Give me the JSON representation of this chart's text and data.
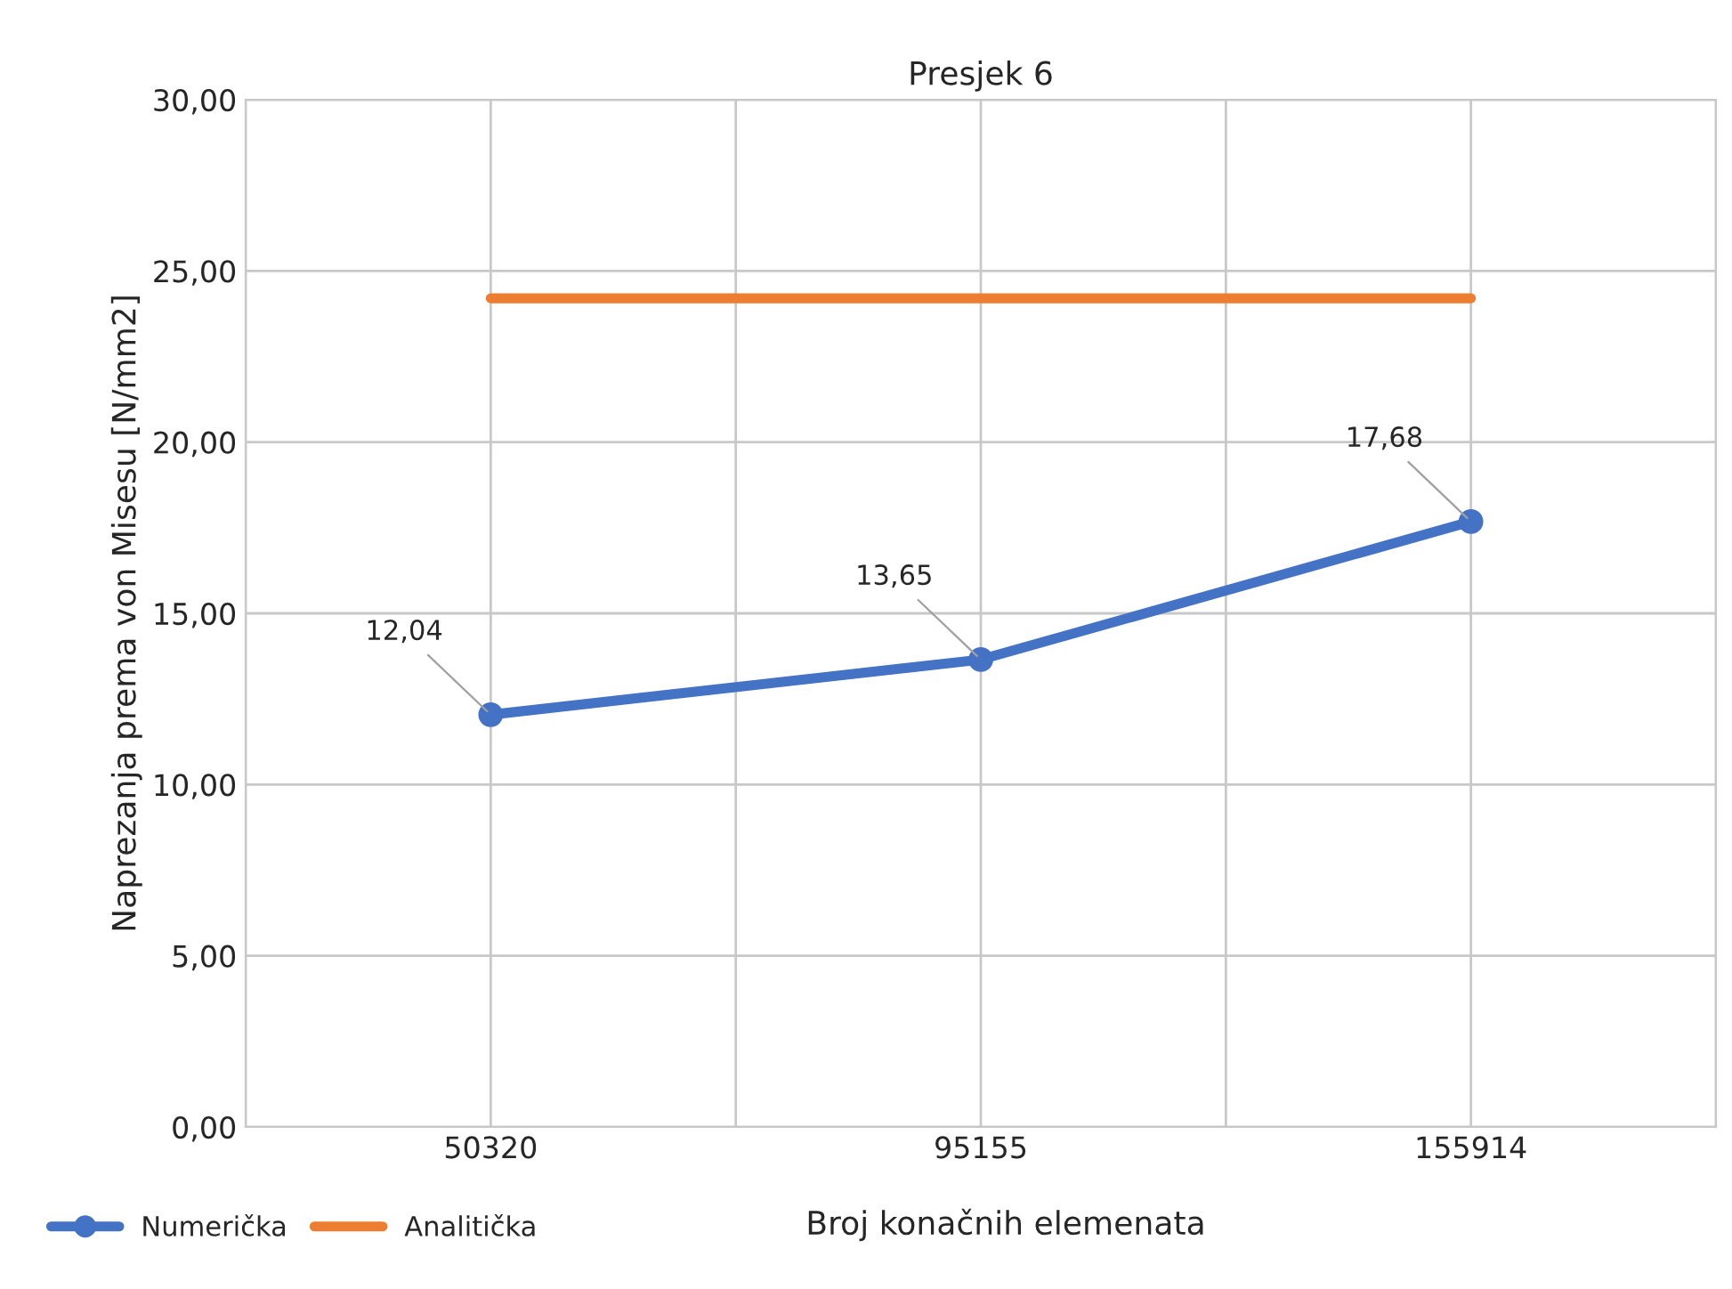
{
  "chart_data": {
    "type": "line",
    "title": "Presjek 6",
    "xlabel": "Broj konačnih elemenata",
    "ylabel": "Naprezanja prema von Misesu [N/mm2]",
    "categories": [
      "50320",
      "95155",
      "155914"
    ],
    "series": [
      {
        "name": "Numerička",
        "color": "#4472c4",
        "values": [
          12.04,
          13.65,
          17.68
        ],
        "marker": "circle",
        "value_labels": [
          "12,04",
          "13,65",
          "17,68"
        ]
      },
      {
        "name": "Analitička",
        "color": "#ed7d31",
        "values": [
          24.2,
          24.2,
          24.2
        ],
        "marker": "none"
      }
    ],
    "ylim": [
      0,
      30
    ],
    "yticks": [
      {
        "value": 0,
        "label": "0,00"
      },
      {
        "value": 5,
        "label": "5,00"
      },
      {
        "value": 10,
        "label": "10,00"
      },
      {
        "value": 15,
        "label": "15,00"
      },
      {
        "value": 20,
        "label": "20,00"
      },
      {
        "value": 25,
        "label": "25,00"
      },
      {
        "value": 30,
        "label": "30,00"
      }
    ],
    "grid": true,
    "legend": "bottom left",
    "line_style": "solid"
  }
}
